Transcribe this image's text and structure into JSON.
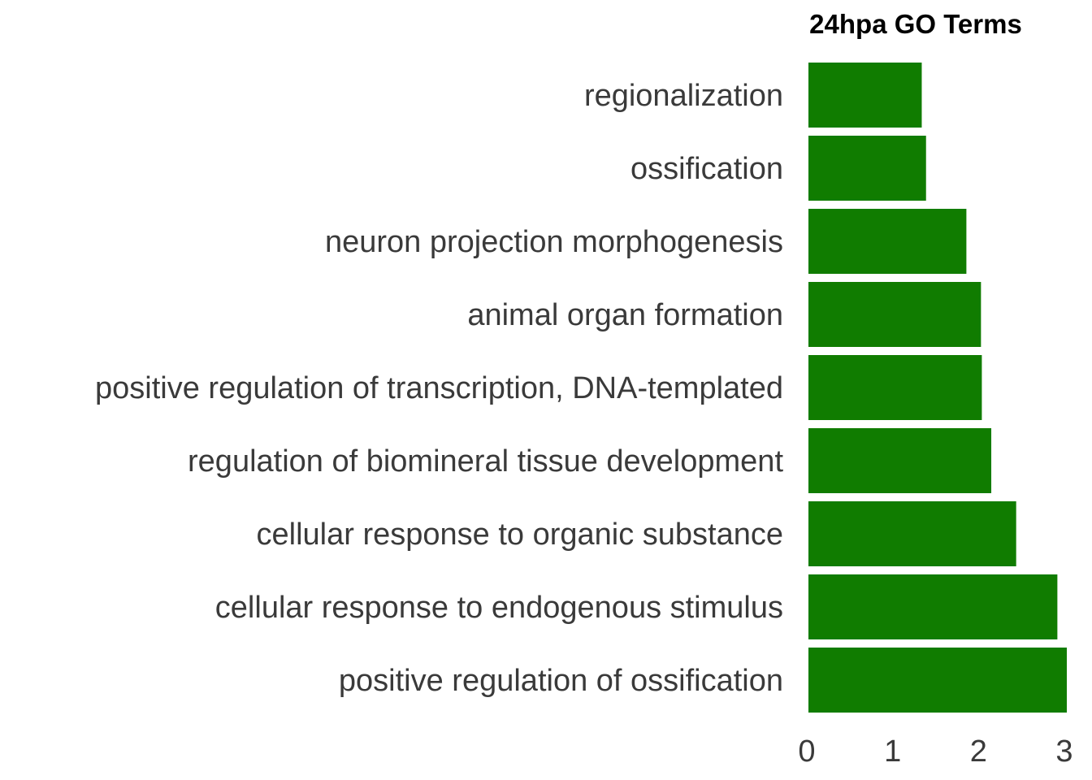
{
  "chart_data": {
    "type": "bar",
    "orientation": "horizontal",
    "title": "24hpa GO Terms",
    "xlabel": "",
    "ylabel": "",
    "categories": [
      "regionalization",
      "ossification",
      "neuron projection morphogenesis",
      "animal organ formation",
      "positive regulation of transcription, DNA-templated",
      "regulation of biomineral tissue development",
      "cellular response to organic substance",
      "cellular response to endogenous stimulus",
      "positive regulation of ossification"
    ],
    "values": [
      1.32,
      1.37,
      1.84,
      2.01,
      2.02,
      2.13,
      2.42,
      2.9,
      3.01
    ],
    "xlim": [
      0,
      3.01
    ],
    "xticks": [
      "0",
      "1",
      "2",
      "3"
    ],
    "grid": false,
    "legend": "none",
    "bar_color": "#107c00"
  }
}
